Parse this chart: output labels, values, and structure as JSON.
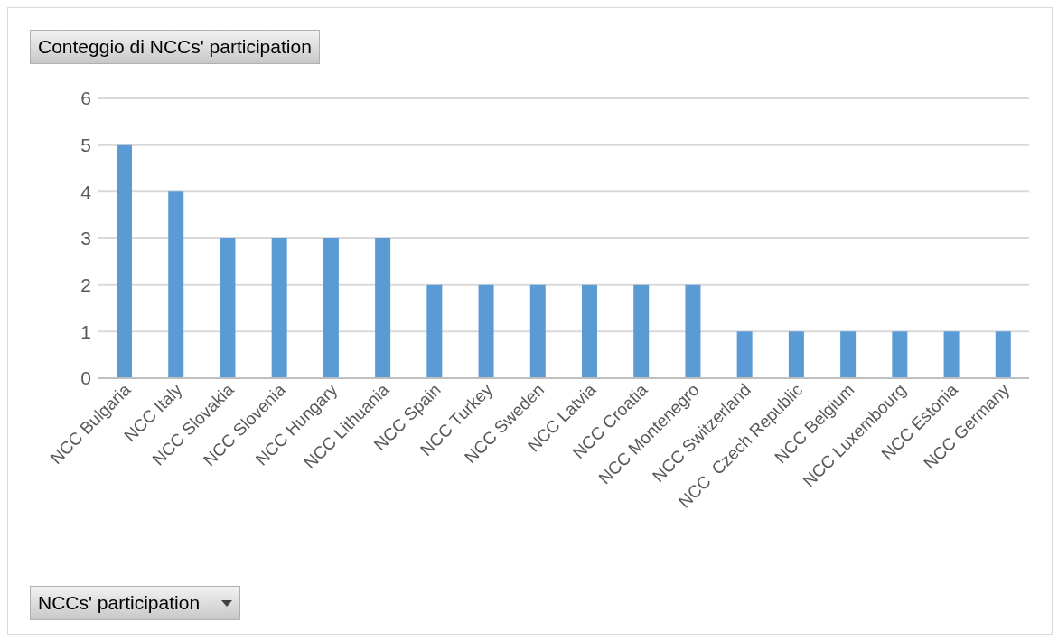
{
  "chart_data": {
    "type": "bar",
    "title": "Conteggio di NCCs' participation",
    "xlabel": "NCCs' participation",
    "categories": [
      "NCC Bulgaria",
      "NCC Italy",
      "NCC Slovakia",
      "NCC Slovenia",
      "NCC Hungary",
      "NCC Lithuania",
      "NCC Spain",
      "NCC Turkey",
      "NCC Sweden",
      "NCC Latvia",
      "NCC Croatia",
      "NCC Montenegro",
      "NCC Switzerland",
      "NCC  Czech Republic",
      "NCC Belgium",
      "NCC Luxembourg",
      "NCC Estonia",
      "NCC Germany"
    ],
    "values": [
      5,
      4,
      3,
      3,
      3,
      3,
      2,
      2,
      2,
      2,
      2,
      2,
      1,
      1,
      1,
      1,
      1,
      1
    ],
    "color": "#5b9bd5",
    "ylim": [
      0,
      6
    ],
    "yticks": [
      0,
      1,
      2,
      3,
      4,
      5,
      6
    ],
    "grid": "y"
  }
}
